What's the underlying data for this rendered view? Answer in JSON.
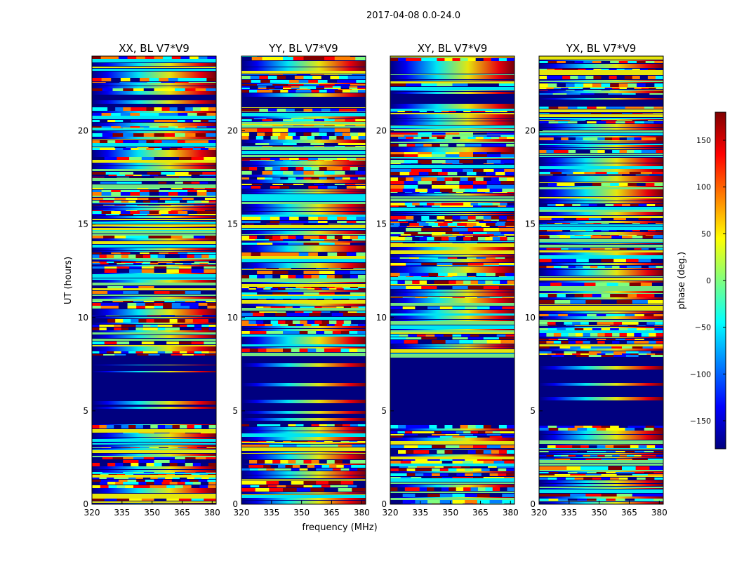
{
  "figure": {
    "suptitle": "2017-04-08 0.0-24.0",
    "ylabel": "UT (hours)",
    "xlabel": "frequency (MHz)"
  },
  "colors": {
    "background": "#ffffff",
    "axis": "#000000",
    "jet": [
      "#00007f",
      "#0000ff",
      "#007fff",
      "#00ffff",
      "#7fff7f",
      "#ffff00",
      "#ff7f00",
      "#ff0000",
      "#7f0000"
    ]
  },
  "colorbar": {
    "label": "phase (deg.)",
    "range": [
      -180,
      180
    ],
    "ticks": [
      -150,
      -100,
      -50,
      0,
      50,
      100,
      150
    ],
    "tick_labels": [
      "−150",
      "−100",
      "−50",
      "0",
      "50",
      "100",
      "150"
    ]
  },
  "chart_data": [
    {
      "type": "heatmap",
      "title": "XX, BL V7*V9",
      "xlim": [
        320,
        382
      ],
      "ylim": [
        0,
        24
      ],
      "xticks": [
        320,
        335,
        350,
        365,
        380
      ],
      "yticks": [
        0,
        5,
        10,
        15,
        20
      ],
      "value": "phase (deg.)"
    },
    {
      "type": "heatmap",
      "title": "YY, BL V7*V9",
      "xlim": [
        320,
        382
      ],
      "ylim": [
        0,
        24
      ],
      "xticks": [
        320,
        335,
        350,
        365,
        380
      ],
      "yticks": [
        0,
        5,
        10,
        15,
        20
      ],
      "value": "phase (deg.)"
    },
    {
      "type": "heatmap",
      "title": "XY, BL V7*V9",
      "xlim": [
        320,
        382
      ],
      "ylim": [
        0,
        24
      ],
      "xticks": [
        320,
        335,
        350,
        365,
        380
      ],
      "yticks": [
        0,
        5,
        10,
        15,
        20
      ],
      "value": "phase (deg.)"
    },
    {
      "type": "heatmap",
      "title": "YX, BL V7*V9",
      "xlim": [
        320,
        382
      ],
      "ylim": [
        0,
        24
      ],
      "xticks": [
        320,
        335,
        350,
        365,
        380
      ],
      "yticks": [
        0,
        5,
        10,
        15,
        20
      ],
      "value": "phase (deg.)"
    }
  ]
}
